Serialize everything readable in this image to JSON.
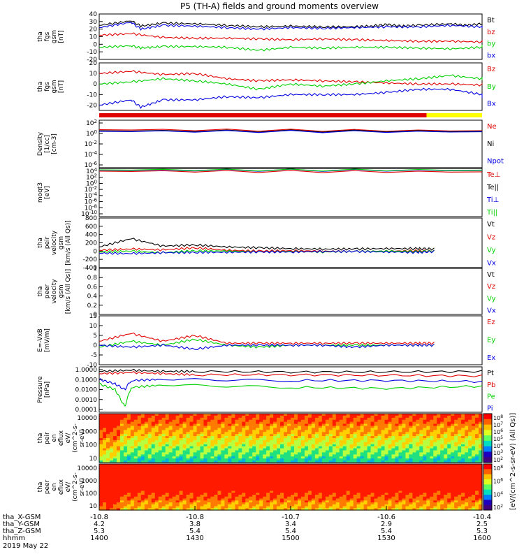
{
  "title": "P5 (TH-A) fields and ground moments overview",
  "colors": {
    "black": "#000000",
    "red": "#e00000",
    "green": "#00d000",
    "blue": "#0000e0",
    "yellow": "#ffff00"
  },
  "chart_data": [
    {
      "type": "line",
      "name": "fgs gsm",
      "ylabel_lines": [
        "tha",
        "fgs",
        "gsm",
        "[nT]"
      ],
      "ylim": [
        -20,
        40
      ],
      "yticks": [
        40,
        30,
        20,
        10,
        0,
        -10,
        -20
      ],
      "legend": [
        {
          "name": "Bt",
          "color": "black"
        },
        {
          "name": "bz",
          "color": "red"
        },
        {
          "name": "by",
          "color": "green"
        },
        {
          "name": "bx",
          "color": "blue"
        }
      ],
      "series": [
        {
          "name": "Bt",
          "color": "black",
          "x": [
            1400,
            1410,
            1413,
            1420,
            1430,
            1440,
            1450,
            1500,
            1510,
            1520,
            1525,
            1530,
            1535,
            1540,
            1550,
            1555,
            1560,
            1600
          ],
          "y": [
            25,
            31,
            24,
            28,
            27,
            25,
            23,
            24,
            23,
            23,
            24,
            26,
            24,
            25,
            27,
            25,
            27,
            26
          ]
        },
        {
          "name": "bz",
          "color": "red",
          "x": [
            1400,
            1410,
            1420,
            1430,
            1440,
            1450,
            1500,
            1510,
            1520,
            1530,
            1540,
            1550,
            1560,
            1600
          ],
          "y": [
            12,
            14,
            9,
            8,
            8,
            7,
            6,
            7,
            6,
            5,
            4,
            4,
            3,
            2
          ]
        },
        {
          "name": "by",
          "color": "green",
          "x": [
            1400,
            1410,
            1413,
            1420,
            1430,
            1440,
            1450,
            1500,
            1510,
            1520,
            1530,
            1540,
            1550,
            1560,
            1600
          ],
          "y": [
            -4,
            -2,
            -5,
            -3,
            -3,
            -4,
            -8,
            -4,
            -5,
            -4,
            -4,
            -5,
            -6,
            -4,
            0
          ]
        },
        {
          "name": "bx",
          "color": "blue",
          "x": [
            1400,
            1410,
            1413,
            1420,
            1430,
            1440,
            1450,
            1500,
            1510,
            1520,
            1530,
            1540,
            1550,
            1560,
            1600
          ],
          "y": [
            22,
            29,
            20,
            25,
            24,
            22,
            20,
            22,
            21,
            22,
            23,
            23,
            25,
            23,
            22
          ]
        }
      ]
    },
    {
      "type": "line",
      "name": "fgs gsm detail",
      "ylabel_lines": [
        "tha",
        "fgs",
        "gsm",
        "[nT]"
      ],
      "ylim": [
        -25,
        20
      ],
      "yticks": [
        20,
        10,
        0,
        -10,
        -20
      ],
      "legend": [
        {
          "name": "Bz",
          "color": "red"
        },
        {
          "name": "By",
          "color": "green"
        },
        {
          "name": "Bx",
          "color": "blue"
        }
      ],
      "series": [
        {
          "name": "Bz",
          "color": "red",
          "x": [
            1400,
            1410,
            1420,
            1430,
            1440,
            1450,
            1500,
            1510,
            1520,
            1530,
            1540,
            1550,
            1560,
            1600
          ],
          "y": [
            10,
            12,
            9,
            10,
            5,
            3,
            4,
            3,
            2,
            1,
            0,
            0,
            -1,
            0
          ]
        },
        {
          "name": "By",
          "color": "green",
          "x": [
            1400,
            1410,
            1420,
            1430,
            1440,
            1450,
            1500,
            1510,
            1520,
            1530,
            1540,
            1550,
            1560,
            1600
          ],
          "y": [
            0,
            2,
            5,
            3,
            0,
            -5,
            0,
            -2,
            0,
            3,
            5,
            8,
            5,
            3
          ]
        },
        {
          "name": "Bx",
          "color": "blue",
          "x": [
            1400,
            1410,
            1413,
            1420,
            1430,
            1440,
            1450,
            1500,
            1510,
            1520,
            1530,
            1540,
            1550,
            1560,
            1600
          ],
          "y": [
            -20,
            -15,
            -22,
            -15,
            -15,
            -12,
            -13,
            -10,
            -10,
            -10,
            -8,
            -5,
            -5,
            -10,
            -13
          ]
        }
      ]
    },
    {
      "type": "line",
      "name": "Density",
      "log": true,
      "ylabel_lines": [
        "Density",
        "[1/cc]",
        "[cm-3]"
      ],
      "ylim": [
        -6,
        3
      ],
      "yticks_labels": [
        "10^2",
        "10^0",
        "10^-2",
        "10^-4",
        "10^-6"
      ],
      "legend": [
        {
          "name": "Ne",
          "color": "red"
        },
        {
          "name": "Ni",
          "color": "black"
        },
        {
          "name": "Npot",
          "color": "blue"
        }
      ],
      "series": [
        {
          "name": "Ne",
          "color": "red",
          "x": [
            1400,
            1600
          ],
          "y": [
            1.2,
            1.0
          ]
        },
        {
          "name": "Ni",
          "color": "black",
          "x": [
            1400,
            1600
          ],
          "y": [
            1.0,
            0.9
          ]
        },
        {
          "name": "Npot",
          "color": "blue",
          "x": [
            1400,
            1600
          ],
          "y": [
            0.9,
            0.8
          ]
        }
      ]
    },
    {
      "type": "line",
      "name": "Temperature",
      "log": true,
      "ylabel_lines": [
        "moqt3",
        "[eV]"
      ],
      "ylim": [
        -10,
        4
      ],
      "yticks_labels": [
        "10^4",
        "10^2",
        "10^0",
        "10^-2",
        "10^-4",
        "10^-6",
        "10^-8",
        "10^-10"
      ],
      "legend": [
        {
          "name": "Te⊥",
          "color": "red"
        },
        {
          "name": "Te||",
          "color": "black"
        },
        {
          "name": "Ti⊥",
          "color": "blue"
        },
        {
          "name": "Ti||",
          "color": "green"
        }
      ],
      "series": [
        {
          "name": "Te⊥",
          "color": "red",
          "x": [
            1400,
            1600
          ],
          "y": [
            3.2,
            3.0
          ]
        },
        {
          "name": "Ti⊥",
          "color": "blue",
          "x": [
            1400,
            1600
          ],
          "y": [
            3.5,
            3.4
          ]
        },
        {
          "name": "Ti||",
          "color": "green",
          "x": [
            1400,
            1600
          ],
          "y": [
            3.6,
            3.5
          ]
        }
      ]
    },
    {
      "type": "line",
      "name": "peir velocity",
      "ylabel_lines": [
        "tha",
        "peir",
        "velocity",
        "gsm",
        "[km/s (All Qs)]"
      ],
      "ylim": [
        -400,
        800
      ],
      "yticks": [
        800,
        600,
        400,
        200,
        0,
        -200,
        -400
      ],
      "legend": [
        {
          "name": "Vt",
          "color": "black"
        },
        {
          "name": "Vz",
          "color": "red"
        },
        {
          "name": "Vy",
          "color": "green"
        },
        {
          "name": "Vx",
          "color": "blue"
        }
      ],
      "series": [
        {
          "name": "Vt",
          "color": "black",
          "x": [
            1400,
            1410,
            1420,
            1430,
            1440,
            1450,
            1500,
            1510,
            1520,
            1530,
            1540,
            1545
          ],
          "y": [
            100,
            300,
            120,
            150,
            100,
            80,
            60,
            50,
            50,
            60,
            60,
            50
          ]
        },
        {
          "name": "Vz",
          "color": "red",
          "x": [
            1400,
            1410,
            1420,
            1430,
            1440,
            1450,
            1500,
            1510,
            1520,
            1530,
            1540,
            1545
          ],
          "y": [
            20,
            50,
            30,
            80,
            20,
            0,
            10,
            0,
            -10,
            0,
            10,
            0
          ]
        },
        {
          "name": "Vy",
          "color": "green",
          "x": [
            1400,
            1410,
            1420,
            1430,
            1440,
            1450,
            1500,
            1510,
            1520,
            1530,
            1540,
            1545
          ],
          "y": [
            -20,
            0,
            -40,
            10,
            0,
            -20,
            -10,
            -20,
            -10,
            0,
            -10,
            0
          ]
        },
        {
          "name": "Vx",
          "color": "blue",
          "x": [
            1400,
            1410,
            1420,
            1430,
            1440,
            1450,
            1500,
            1510,
            1520,
            1530,
            1540,
            1545
          ],
          "y": [
            -50,
            -60,
            -40,
            -30,
            -30,
            -20,
            -20,
            -10,
            -10,
            -20,
            -30,
            -10
          ]
        }
      ]
    },
    {
      "type": "line",
      "name": "peer velocity",
      "ylabel_lines": [
        "tha",
        "peer",
        "velocity",
        "gsm",
        "[km/s (All Qs)]"
      ],
      "ylim": [
        0,
        1
      ],
      "yticks": [
        1.0,
        0.8,
        0.6,
        0.4,
        0.2,
        0.0
      ],
      "legend": [
        {
          "name": "Vt",
          "color": "black"
        },
        {
          "name": "Vz",
          "color": "red"
        },
        {
          "name": "Vy",
          "color": "green"
        },
        {
          "name": "Vx",
          "color": "blue"
        }
      ],
      "series": []
    },
    {
      "type": "line",
      "name": "E=-VxB",
      "ylabel_lines": [
        "E=-VxB",
        "[mV/m]"
      ],
      "ylim": [
        -10,
        15
      ],
      "yticks": [
        15,
        10,
        5,
        0,
        -5,
        -10
      ],
      "legend": [
        {
          "name": "Ez",
          "color": "red"
        },
        {
          "name": "Ey",
          "color": "green"
        },
        {
          "name": "Ex",
          "color": "blue"
        }
      ],
      "series": [
        {
          "name": "Ez",
          "color": "red",
          "x": [
            1400,
            1410,
            1420,
            1430,
            1440,
            1450,
            1500,
            1510,
            1520,
            1530,
            1540,
            1545
          ],
          "y": [
            2,
            6,
            2,
            5,
            1,
            1,
            1,
            1,
            1,
            1,
            1,
            1
          ]
        },
        {
          "name": "Ey",
          "color": "green",
          "x": [
            1400,
            1410,
            1420,
            1430,
            1440,
            1450,
            1500,
            1510,
            1520,
            1530,
            1540,
            1545
          ],
          "y": [
            -1,
            2,
            0,
            3,
            0,
            -1,
            0,
            0,
            0,
            0,
            0,
            0
          ]
        },
        {
          "name": "Ex",
          "color": "blue",
          "x": [
            1400,
            1410,
            1420,
            1430,
            1440,
            1450,
            1500,
            1510,
            1520,
            1530,
            1540,
            1545
          ],
          "y": [
            0,
            -1,
            0,
            -2,
            0,
            0,
            0,
            0,
            -1,
            0,
            0,
            0
          ]
        }
      ]
    },
    {
      "type": "line",
      "name": "Pressure",
      "log": true,
      "ylabel_lines": [
        "Pressure",
        "[nPa]"
      ],
      "ylim": [
        -4,
        0
      ],
      "yticks_labels": [
        "1.0000",
        "0.1000",
        "0.0100",
        "0.0010",
        "0.0001"
      ],
      "legend": [
        {
          "name": "Pt",
          "color": "black"
        },
        {
          "name": "Pb",
          "color": "red"
        },
        {
          "name": "Pe",
          "color": "green"
        },
        {
          "name": "Pi",
          "color": "blue"
        }
      ],
      "series": [
        {
          "name": "Pt",
          "color": "black",
          "x": [
            1400,
            1410,
            1420,
            1430,
            1500,
            1530,
            1600
          ],
          "y": [
            -0.4,
            -0.3,
            -0.4,
            -0.4,
            -0.45,
            -0.45,
            -0.4
          ]
        },
        {
          "name": "Pb",
          "color": "red",
          "x": [
            1400,
            1410,
            1420,
            1430,
            1500,
            1530,
            1600
          ],
          "y": [
            -0.6,
            -0.5,
            -0.6,
            -0.7,
            -0.7,
            -0.75,
            -0.8
          ]
        },
        {
          "name": "Pe",
          "color": "green",
          "x": [
            1400,
            1405,
            1408,
            1410,
            1420,
            1500,
            1530,
            1600
          ],
          "y": [
            -1.5,
            -2.0,
            -3.5,
            -1.8,
            -1.6,
            -1.8,
            -1.9,
            -1.7
          ]
        },
        {
          "name": "Pi",
          "color": "blue",
          "x": [
            1400,
            1405,
            1408,
            1410,
            1420,
            1500,
            1530,
            1600
          ],
          "y": [
            -1.1,
            -1.5,
            -2.0,
            -1.2,
            -1.1,
            -1.2,
            -1.2,
            -1.3
          ]
        }
      ]
    },
    {
      "type": "heatmap",
      "name": "peir en eflux",
      "ylabel_lines": [
        "tha",
        "peir",
        "en",
        "eflux",
        "eV/",
        "(cm^2-s-",
        "sr-eV)"
      ],
      "yticks": [
        "10000",
        "1000",
        "100",
        "10"
      ]
    },
    {
      "type": "heatmap",
      "name": "peer en eflux",
      "ylabel_lines": [
        "tha",
        "peer",
        "en",
        "eflux",
        "eV/",
        "(cm^2-s-",
        "sr-eV)"
      ],
      "yticks": [
        "10000",
        "1000",
        "100",
        "10"
      ]
    }
  ],
  "colorbar": {
    "label": "[eV/(cm^2-s-sr-eV) (All Qs)]",
    "ticks_top": [
      "10^8",
      "10^7",
      "10^6",
      "10^5",
      "10^4",
      "10^3",
      "10^2"
    ],
    "ticks_bottom": [
      "10^8",
      "10^6",
      "10^4",
      "10^2"
    ]
  },
  "x_axis": {
    "rows": [
      {
        "label": "tha_X-GSM",
        "values": [
          "-10.8",
          "-10.8",
          "-10.7",
          "-10.6",
          "-10.4"
        ]
      },
      {
        "label": "tha_Y-GSM",
        "values": [
          "4.2",
          "3.8",
          "3.4",
          "2.9",
          "2.5"
        ]
      },
      {
        "label": "tha_Z-GSM",
        "values": [
          "5.3",
          "5.4",
          "5.4",
          "5.4",
          "5.3"
        ]
      },
      {
        "label": "hhmm",
        "values": [
          "1400",
          "1430",
          "1500",
          "1530",
          "1600"
        ]
      }
    ],
    "date": "2019 May 22"
  }
}
